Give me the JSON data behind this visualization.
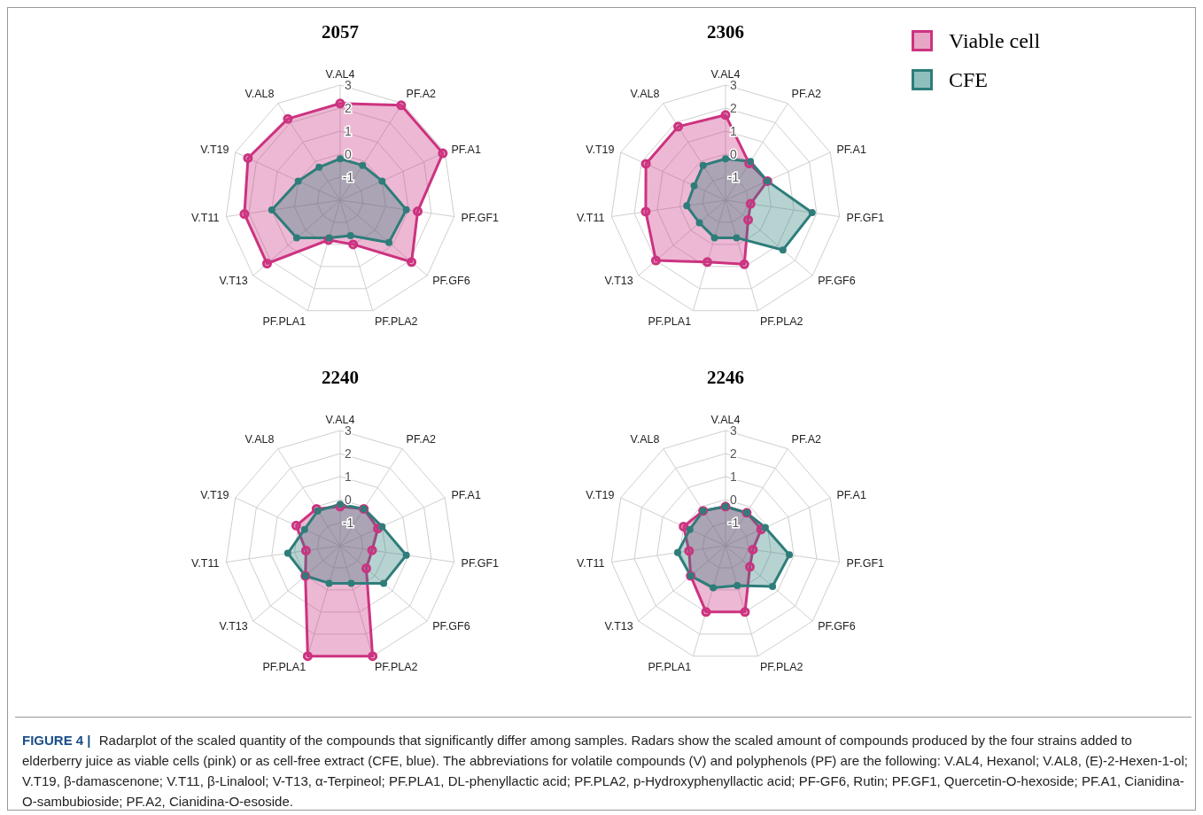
{
  "chart_data": [
    {
      "type": "radar",
      "title": "2057",
      "categories": [
        "V.AL4",
        "PF.A2",
        "PF.A1",
        "PF.GF1",
        "PF.GF6",
        "PF.PLA2",
        "PF.PLA1",
        "V.T13",
        "V.T11",
        "V.T19",
        "V.AL8"
      ],
      "ylim": [
        -2,
        3
      ],
      "yticks": [
        -1,
        0,
        1,
        2,
        3
      ],
      "marker": "circle",
      "series": [
        {
          "color": "#cc3380",
          "values": [
            2.2,
            2.9,
            2.9,
            1.4,
            2.1,
            0.0,
            -0.2,
            2.2,
            2.2,
            2.4,
            2.2
          ]
        },
        {
          "color": "#2e7d7a",
          "values": [
            -0.2,
            -0.2,
            0.0,
            0.9,
            0.8,
            -0.4,
            -0.3,
            0.5,
            1.0,
            0.0,
            -0.3
          ]
        }
      ]
    },
    {
      "type": "radar",
      "title": "2306",
      "categories": [
        "V.AL4",
        "PF.A2",
        "PF.A1",
        "PF.GF1",
        "PF.GF6",
        "PF.PLA2",
        "PF.PLA1",
        "V.T13",
        "V.T11",
        "V.T19",
        "V.AL8"
      ],
      "ylim": [
        -2,
        3
      ],
      "yticks": [
        -1,
        0,
        1,
        2,
        3
      ],
      "marker": "circle",
      "legend": "right",
      "series": [
        {
          "name": "Viable cell",
          "color": "#cc3380",
          "values": [
            1.7,
            -0.1,
            0.0,
            -0.9,
            -0.7,
            0.9,
            0.8,
            2.0,
            1.5,
            1.8,
            1.8
          ]
        },
        {
          "name": "CFE",
          "color": "#2e7d7a",
          "values": [
            -0.2,
            0.0,
            0.0,
            1.8,
            1.3,
            -0.3,
            -0.3,
            -0.5,
            -0.3,
            -0.5,
            -0.2
          ]
        }
      ]
    },
    {
      "type": "radar",
      "title": "2240",
      "categories": [
        "V.AL4",
        "PF.A2",
        "PF.A1",
        "PF.GF1",
        "PF.GF6",
        "PF.PLA2",
        "PF.PLA1",
        "V.T13",
        "V.T11",
        "V.T19",
        "V.AL8"
      ],
      "ylim": [
        -2,
        3
      ],
      "yticks": [
        -1,
        0,
        1,
        2,
        3
      ],
      "marker": "circle",
      "series": [
        {
          "color": "#cc3380",
          "values": [
            -0.3,
            -0.1,
            -0.2,
            -0.6,
            -0.5,
            3.0,
            3.0,
            0.0,
            -0.5,
            0.1,
            -0.1
          ]
        },
        {
          "color": "#2e7d7a",
          "values": [
            -0.2,
            -0.1,
            0.0,
            0.9,
            0.5,
            -0.3,
            -0.3,
            0.0,
            0.3,
            -0.3,
            -0.2
          ]
        }
      ]
    },
    {
      "type": "radar",
      "title": "2246",
      "categories": [
        "V.AL4",
        "PF.A2",
        "PF.A1",
        "PF.GF1",
        "PF.GF6",
        "PF.PLA2",
        "PF.PLA1",
        "V.T13",
        "V.T11",
        "V.T19",
        "V.AL8"
      ],
      "ylim": [
        -2,
        3
      ],
      "yticks": [
        -1,
        0,
        1,
        2,
        3
      ],
      "marker": "circle",
      "annotations": [
        "FIGURE 4 |",
        "Radarplot of the scaled quantity of the compounds that significantly differ among samples. Radars show the scaled amount of compounds produced by the four strains added to elderberry juice as viable cells (pink) or as cell-free extract (CFE, blue). The abbreviations for volatile compounds (V) and polyphenols (PF) are the following: V.AL4, Hexanol; V.AL8, (E)-2-Hexen-1-ol; V.T19, β-damascenone; V.T11, β-Linalool; V-T13, α-Terpineol; PF.PLA1, DL-phenyllactic acid; PF.PLA2, p-Hydroxyphenyllactic acid; PF-GF6, Rutin; PF.GF1, Quercetin-O-hexoside; PF.A1, Cianidina-O-sambubioside; PF.A2, Cianidina-O-esoside."
      ],
      "series": [
        {
          "color": "#cc3380",
          "values": [
            -0.3,
            -0.3,
            -0.3,
            -0.8,
            -0.6,
            1.0,
            1.0,
            0.0,
            -0.4,
            0.0,
            -0.2
          ]
        },
        {
          "color": "#2e7d7a",
          "values": [
            -0.3,
            -0.3,
            -0.1,
            0.8,
            0.7,
            -0.2,
            -0.1,
            0.0,
            0.1,
            -0.3,
            -0.2
          ]
        }
      ]
    }
  ]
}
